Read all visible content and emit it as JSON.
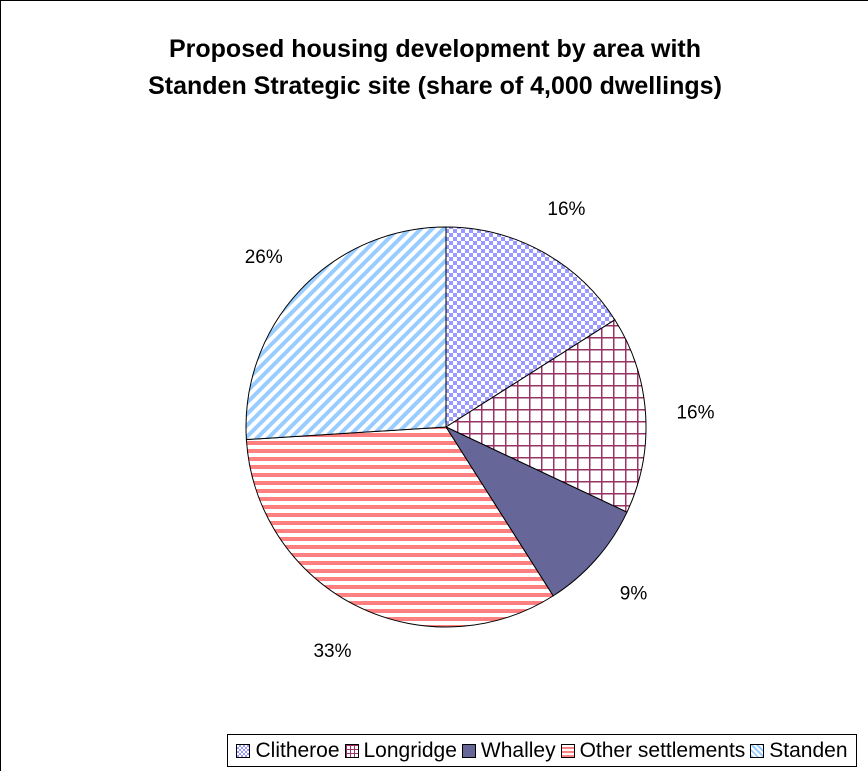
{
  "chart_data": {
    "type": "pie",
    "title": "Proposed housing development by area with\nStanden Strategic site (share of 4,000 dwellings)",
    "slices": [
      {
        "name": "Clitheroe",
        "value": 16,
        "label": "16%",
        "color": "#9999ff",
        "pattern": "checker"
      },
      {
        "name": "Longridge",
        "value": 16,
        "label": "16%",
        "color": "#993366",
        "pattern": "grid"
      },
      {
        "name": "Whalley",
        "value": 9,
        "label": "9%",
        "color": "#666699",
        "pattern": "solid"
      },
      {
        "name": "Other settlements",
        "value": 33,
        "label": "33%",
        "color": "#ff8080",
        "pattern": "horizontal"
      },
      {
        "name": "Standen",
        "value": 26,
        "label": "26%",
        "color": "#99ccff",
        "pattern": "diagonal"
      }
    ],
    "start_angle": "12 o'clock, clockwise",
    "legend_position": "bottom"
  }
}
